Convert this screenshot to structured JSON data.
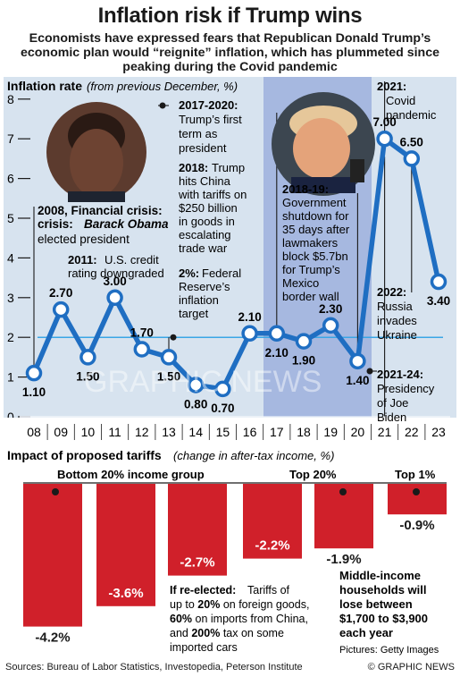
{
  "title": "Inflation risk if Trump wins",
  "subtitle": "Economists have expressed fears that Republican Donald Trump’s economic plan would “reignite” inflation, which has plummeted since peaking during the Covid pandemic",
  "chart_data": [
    {
      "type": "line",
      "title": "Inflation rate",
      "title_note": "(from previous December, %)",
      "x": [
        "08",
        "09",
        "10",
        "11",
        "12",
        "13",
        "14",
        "15",
        "16",
        "17",
        "18",
        "19",
        "20",
        "21",
        "22",
        "23"
      ],
      "values": [
        1.1,
        2.7,
        1.5,
        3.0,
        1.7,
        1.5,
        0.8,
        0.7,
        2.1,
        2.1,
        1.9,
        2.3,
        1.4,
        7.0,
        6.5,
        3.4
      ],
      "labels": [
        "1.10",
        "2.70",
        "1.50",
        "3.00",
        "1.70",
        "1.50",
        "0.80",
        "0.70",
        "2.10",
        "2.10",
        "1.90",
        "2.30",
        "1.40",
        "7.00",
        "6.50",
        "3.40"
      ],
      "yticks": [
        "0",
        "1",
        "2",
        "3",
        "4",
        "5",
        "6",
        "7",
        "8"
      ],
      "ylim": [
        0,
        8
      ],
      "target_value": 2,
      "annotations": {
        "a2008_bold": "2008, Financial crisis:",
        "a2008_name": "Barack Obama",
        "a2008_rest": "elected president",
        "a2011_bold": "2011:",
        "a2011_l1": "U.S. credit",
        "a2011_l2": "rating downgraded",
        "a2017_bold": "2017-2020:",
        "a2017_l1": "Trump’s first",
        "a2017_l2": "term as",
        "a2017_l3": "president",
        "a2018_bold": "2018:",
        "a2018_l1": "Trump",
        "a2018_l2": "hits China",
        "a2018_l3": "with tariffs on",
        "a2018_l4": "$250 billion",
        "a2018_l5": "in goods in",
        "a2018_l6": "escalating",
        "a2018_l7": "trade war",
        "a2pct_bold": "2%:",
        "a2pct_l1": "Federal",
        "a2pct_l2": "Reserve’s",
        "a2pct_l3": "inflation",
        "a2pct_l4": "target",
        "a1819_bold": "2018-19:",
        "a1819_l1": "Government",
        "a1819_l2": "shutdown for",
        "a1819_l3": "35 days after",
        "a1819_l4": "lawmakers",
        "a1819_l5": "block $5.7bn",
        "a1819_l6": "for Trump’s",
        "a1819_l7": "Mexico",
        "a1819_l8": "border wall",
        "a2021_bold": "2021:",
        "a2021_l1": "Covid",
        "a2021_l2": "pandemic",
        "a2022_bold": "2022:",
        "a2022_l1": "Russia",
        "a2022_l2": "invades",
        "a2022_l3": "Ukraine",
        "a2124_bold": "2021-24:",
        "a2124_l1": "Presidency",
        "a2124_l2": "of Joe",
        "a2124_l3": "Biden"
      }
    },
    {
      "type": "bar",
      "title": "Impact of proposed tariffs",
      "title_note": "(change in after-tax income, %)",
      "values": [
        -4.2,
        -3.6,
        -2.7,
        -2.2,
        -1.9,
        -0.9
      ],
      "labels": [
        "-4.2%",
        "-3.6%",
        "-2.7%",
        "-2.2%",
        "-1.9%",
        "-0.9%"
      ],
      "group_labels": {
        "bottom": "Bottom 20% income group",
        "top20": "Top 20%",
        "top1": "Top 1%"
      },
      "note_bold": "If re-elected:",
      "note_l1": "Tariffs of",
      "note_l2a": "up to",
      "note_l2b": "20%",
      "note_l2c": "on foreign goods,",
      "note_l3a": "60%",
      "note_l3b": "on imports from China,",
      "note_l4a": "and",
      "note_l4b": "200%",
      "note_l4c": "tax on some",
      "note_l5": "imported cars",
      "middle_l1": "Middle-income",
      "middle_l2": "households will",
      "middle_l3": "lose between",
      "middle_l4": "$1,700 to $3,900",
      "middle_l5": "each year",
      "pictures": "Pictures: Getty Images"
    }
  ],
  "footer": {
    "sources": "Sources: Bureau of Labor Statistics, Investopedia, Peterson Institute",
    "credit": "© GRAPHIC NEWS"
  },
  "watermark": "GRAPHIC NEWS",
  "colors": {
    "line": "#1f6ec2",
    "bar": "#d0202a",
    "panel": "#d7e3ef",
    "trump_shade": "#a6b8e0",
    "target": "#3aa6e6"
  }
}
